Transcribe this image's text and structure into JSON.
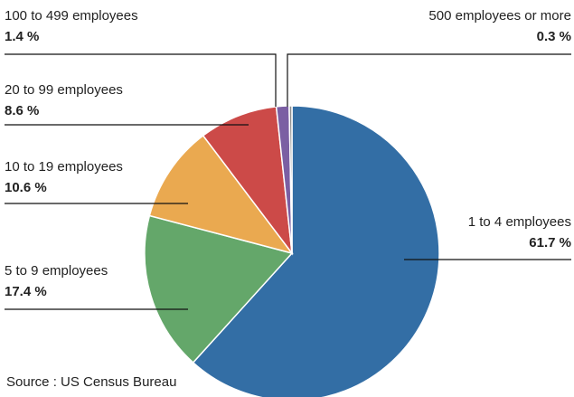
{
  "chart_data": {
    "type": "pie",
    "categories": [
      "1 to 4 employees",
      "5 to 9 employees",
      "10 to 19 employees",
      "20 to 99 employees",
      "100 to 499 employees",
      "500 employees or more"
    ],
    "values": [
      61.7,
      17.4,
      10.6,
      8.6,
      1.4,
      0.3
    ],
    "value_labels": [
      "61.7 %",
      "17.4 %",
      "10.6 %",
      "8.6 %",
      "1.4 %",
      "0.3 %"
    ],
    "colors": [
      "#336ea5",
      "#64a76a",
      "#eaa950",
      "#cc4a48",
      "#7b5fa3",
      "#8d8d8d"
    ],
    "source": "Source : US Census Bureau"
  }
}
